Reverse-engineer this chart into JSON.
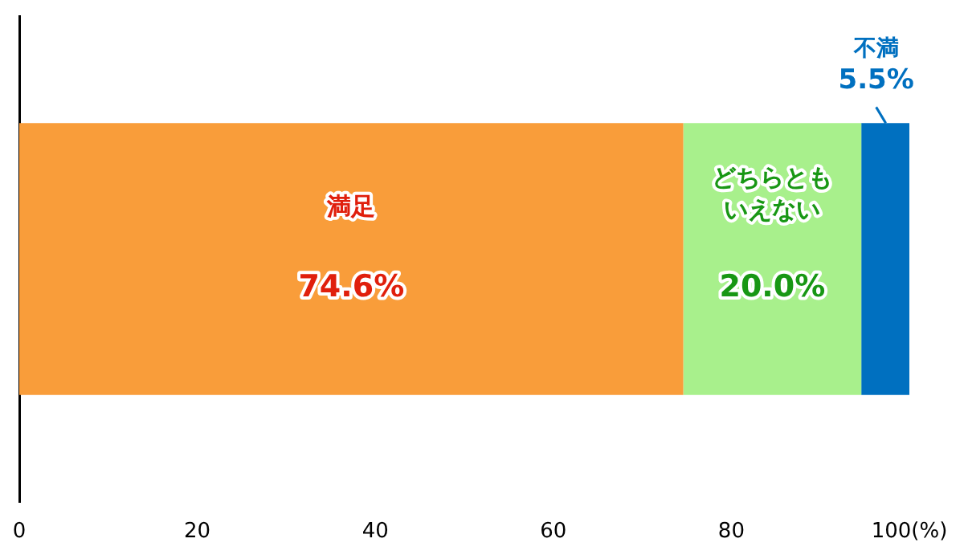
{
  "chart_data": {
    "type": "bar",
    "orientation": "horizontal",
    "stacked": true,
    "categories": [
      null
    ],
    "series": [
      {
        "name": "満足",
        "color": "#f99d3a",
        "values": [
          74.6
        ],
        "value_labels": [
          "74.6%"
        ]
      },
      {
        "name": "どちらともいえない",
        "color": "#a8f08c",
        "values": [
          20.0
        ],
        "value_labels": [
          "20.0%"
        ]
      },
      {
        "name": "不満",
        "color": "#0070c0",
        "values": [
          5.5
        ],
        "value_labels": [
          "5.5%"
        ]
      }
    ],
    "xlim": [
      0,
      100
    ],
    "xticks": [
      0,
      20,
      40,
      60,
      80,
      {
        "value": 100,
        "label": "100(%)"
      }
    ],
    "grid": false,
    "legend": false
  }
}
